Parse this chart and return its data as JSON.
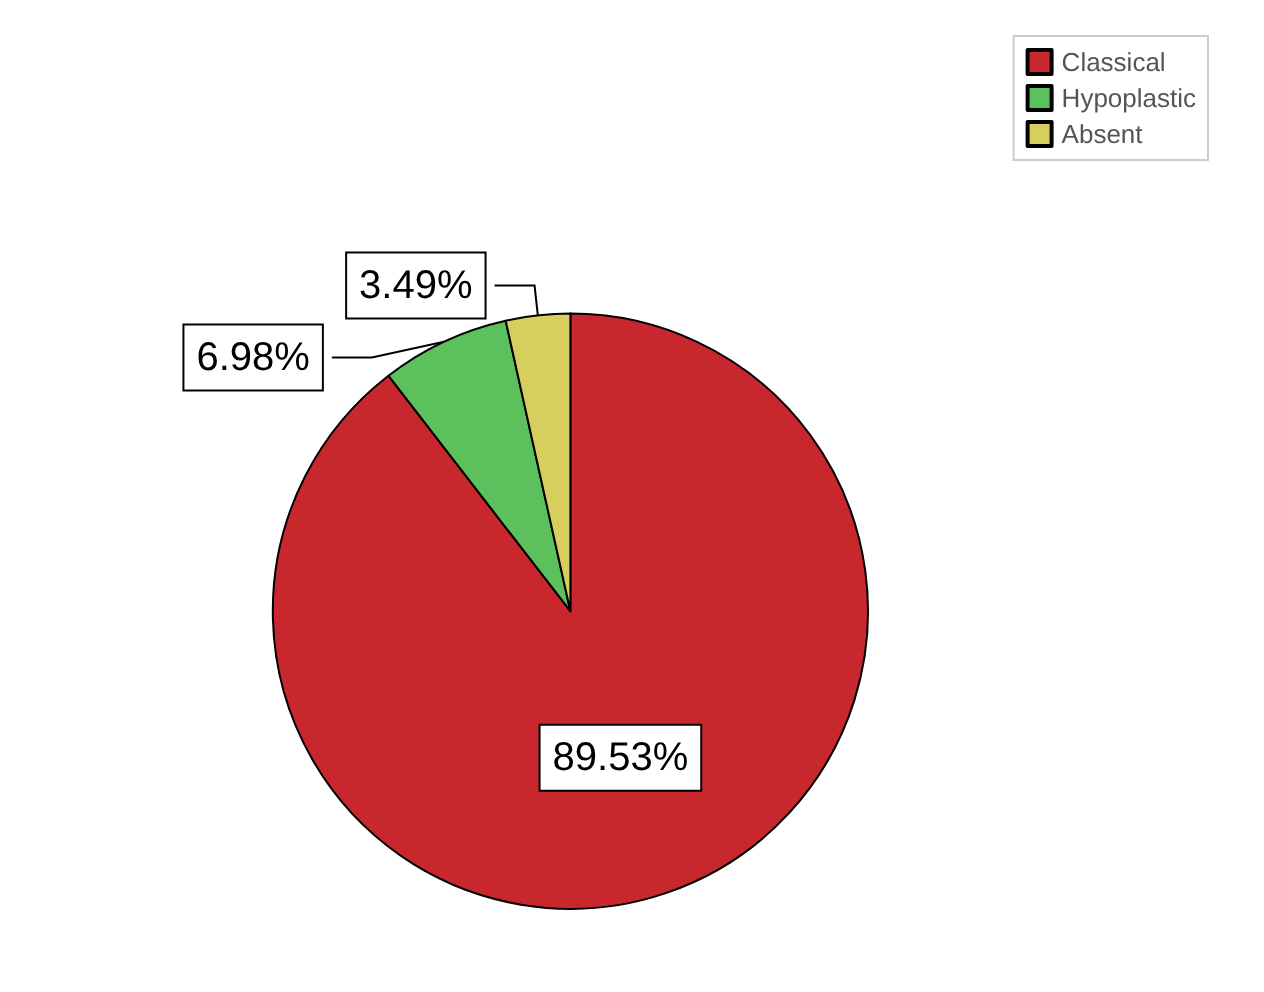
{
  "chart_data": {
    "type": "pie",
    "categories": [
      "Classical",
      "Hypoplastic",
      "Absent"
    ],
    "values": [
      89.53,
      6.98,
      3.49
    ],
    "colors": [
      "#c8282d",
      "#5cc05c",
      "#d6ce5e"
    ],
    "value_labels": [
      "89.53%",
      "6.98%",
      "3.49%"
    ],
    "legend": "top right"
  }
}
